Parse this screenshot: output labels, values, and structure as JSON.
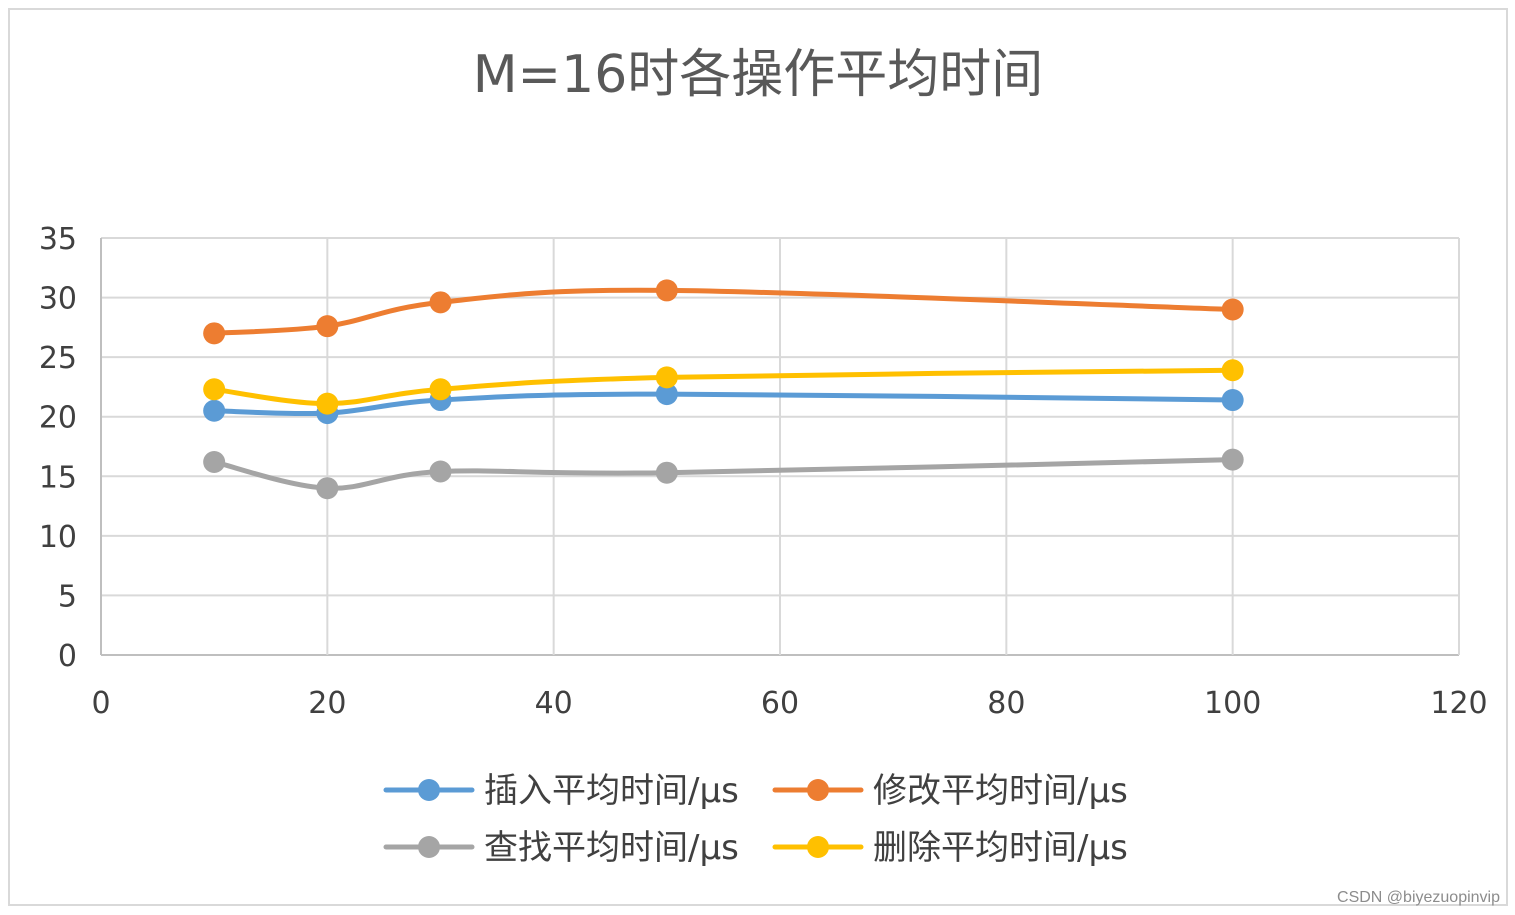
{
  "chart_data": {
    "type": "line",
    "title": "M=16时各操作平均时间",
    "xlabel": "",
    "ylabel": "",
    "xlim": [
      0,
      120
    ],
    "ylim": [
      0,
      35
    ],
    "x_ticks": [
      0,
      20,
      40,
      60,
      80,
      100,
      120
    ],
    "y_ticks": [
      0,
      5,
      10,
      15,
      20,
      25,
      30,
      35
    ],
    "x_tick_labels": [
      "0",
      "20",
      "40",
      "60",
      "80",
      "100",
      "120"
    ],
    "y_tick_labels": [
      "0",
      "5",
      "10",
      "15",
      "20",
      "25",
      "30",
      "35"
    ],
    "grid": true,
    "smooth": true,
    "legend_position": "bottom",
    "x": [
      10,
      20,
      30,
      50,
      100
    ],
    "series": [
      {
        "name": "插入平均时间/μs",
        "color": "#5b9bd5",
        "values": [
          20.5,
          20.3,
          21.4,
          21.9,
          21.4
        ]
      },
      {
        "name": "修改平均时间/μs",
        "color": "#ed7d31",
        "values": [
          27.0,
          27.6,
          29.6,
          30.6,
          29.0
        ]
      },
      {
        "name": "查找平均时间/μs",
        "color": "#a5a5a5",
        "values": [
          16.2,
          14.0,
          15.4,
          15.3,
          16.4
        ]
      },
      {
        "name": "删除平均时间/μs",
        "color": "#ffc000",
        "values": [
          22.3,
          21.1,
          22.3,
          23.3,
          23.9
        ]
      }
    ]
  },
  "watermark": "CSDN @biyezuopinvip"
}
